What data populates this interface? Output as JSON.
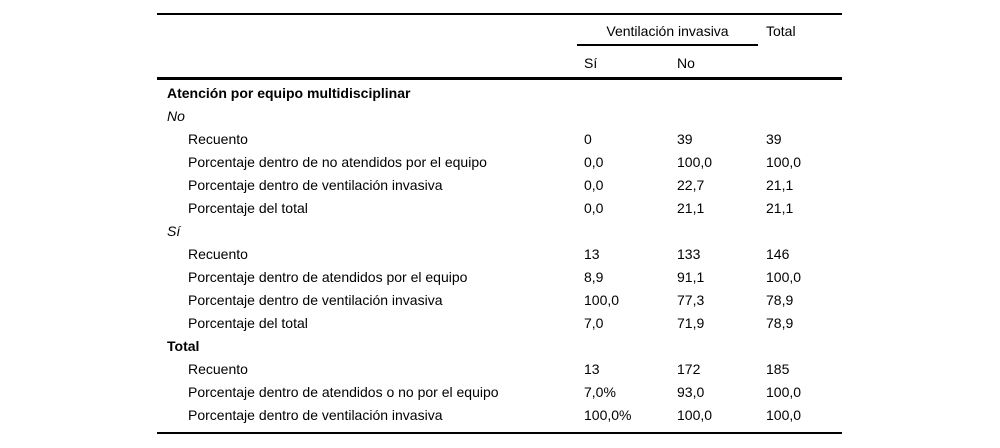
{
  "table": {
    "header": {
      "group": "Ventilación invasiva",
      "total": "Total",
      "sub": [
        "Sí",
        "No"
      ]
    },
    "sections": [
      {
        "title": "Atención por equipo multidisciplinar",
        "style": "bold",
        "rows": []
      },
      {
        "title": "No",
        "style": "italic",
        "rows": [
          {
            "label": "Recuento",
            "si": "0",
            "no": "39",
            "total": "39"
          },
          {
            "label": "Porcentaje dentro de no atendidos por el equipo",
            "si": "0,0",
            "no": "100,0",
            "total": "100,0"
          },
          {
            "label": "Porcentaje dentro de ventilación invasiva",
            "si": "0,0",
            "no": "22,7",
            "total": "21,1"
          },
          {
            "label": "Porcentaje del total",
            "si": "0,0",
            "no": "21,1",
            "total": "21,1"
          }
        ]
      },
      {
        "title": "Sí",
        "style": "italic",
        "rows": [
          {
            "label": "Recuento",
            "si": "13",
            "no": "133",
            "total": "146"
          },
          {
            "label": "Porcentaje dentro de atendidos por el equipo",
            "si": "8,9",
            "no": "91,1",
            "total": "100,0"
          },
          {
            "label": "Porcentaje dentro de ventilación invasiva",
            "si": "100,0",
            "no": "77,3",
            "total": "78,9"
          },
          {
            "label": "Porcentaje del total",
            "si": "7,0",
            "no": "71,9",
            "total": "78,9"
          }
        ]
      },
      {
        "title": "Total",
        "style": "bold",
        "rows": [
          {
            "label": "Recuento",
            "si": "13",
            "no": "172",
            "total": "185"
          },
          {
            "label": "Porcentaje dentro de atendidos o no por el equipo",
            "si": "7,0%",
            "no": "93,0",
            "total": "100,0"
          },
          {
            "label": "Porcentaje dentro de ventilación invasiva",
            "si": "100,0%",
            "no": "100,0",
            "total": "100,0"
          }
        ]
      }
    ],
    "colors": {
      "text": "#000000",
      "background": "#ffffff",
      "rule": "#000000"
    }
  }
}
